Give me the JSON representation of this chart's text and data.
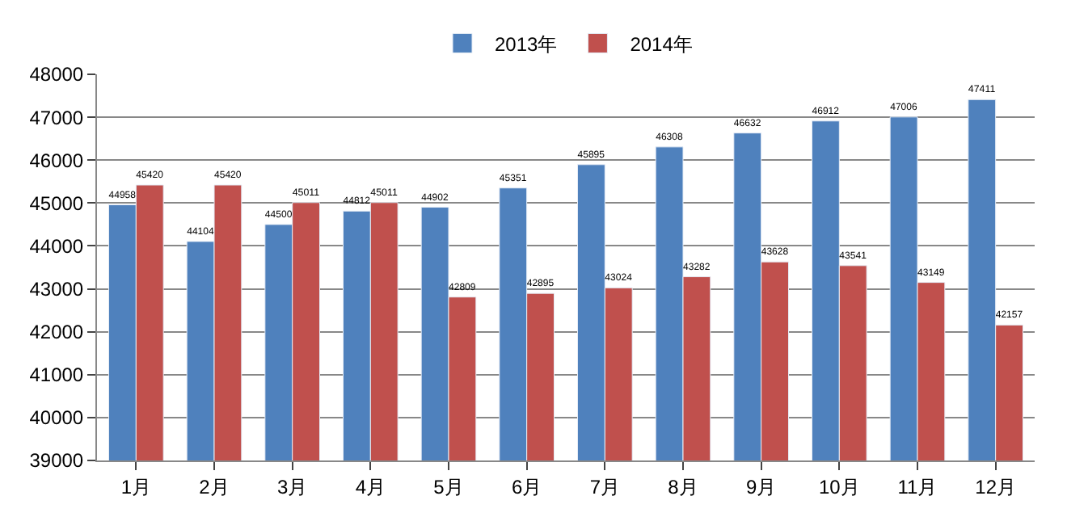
{
  "chart_data": {
    "type": "bar",
    "categories": [
      "1月",
      "2月",
      "3月",
      "4月",
      "5月",
      "6月",
      "7月",
      "8月",
      "9月",
      "10月",
      "11月",
      "12月"
    ],
    "series": [
      {
        "name": "2013年",
        "color": "#4f81bd",
        "values": [
          44958,
          44104,
          44500,
          44812,
          44902,
          45351,
          45895,
          46308,
          46632,
          46912,
          47006,
          47411
        ]
      },
      {
        "name": "2014年",
        "color": "#c0504d",
        "values": [
          45420,
          45420,
          45011,
          45011,
          42809,
          42895,
          43024,
          43282,
          43628,
          43541,
          43149,
          42157
        ]
      }
    ],
    "ylim": [
      39000,
      48000
    ],
    "yticks": [
      39000,
      40000,
      41000,
      42000,
      43000,
      44000,
      45000,
      46000,
      47000,
      48000
    ],
    "grid": "y",
    "legend": "top",
    "data_labels": true
  }
}
